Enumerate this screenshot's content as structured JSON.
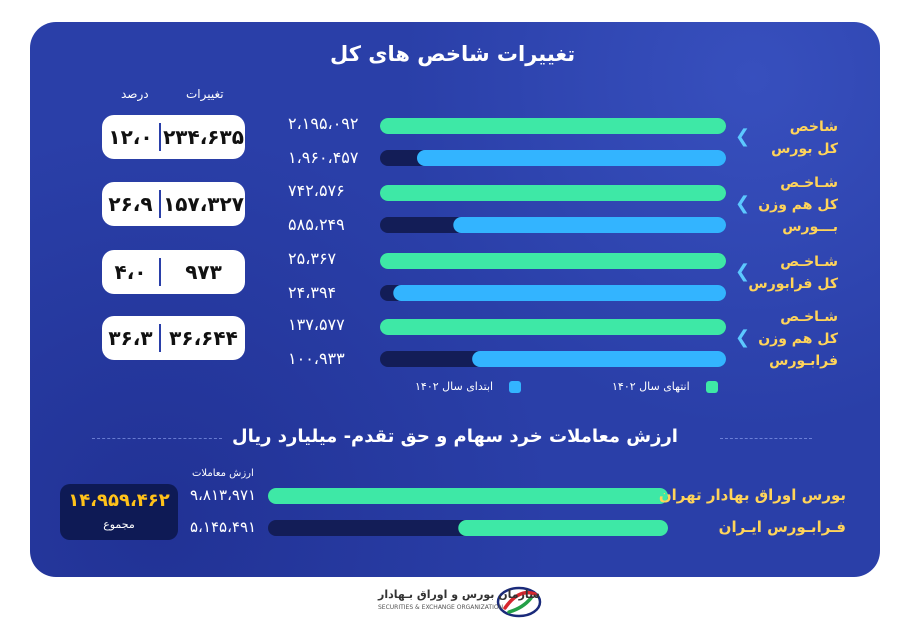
{
  "title_indices": "تغییرات شاخص های کل",
  "headers": {
    "change": "تغییرات",
    "percent": "درصد"
  },
  "indices": [
    {
      "name_lines": [
        "شاخص",
        "کل بورس"
      ],
      "change": "۲۳۴،۶۳۵",
      "percent": "۱۲،۰",
      "end_label": "۲،۱۹۵،۰۹۲",
      "start_label": "۱،۹۶۰،۴۵۷"
    },
    {
      "name_lines": [
        "شـاخـص",
        "کل هم وزن",
        "بـــورس"
      ],
      "change": "۱۵۷،۳۲۷",
      "percent": "۲۶،۹",
      "end_label": "۷۴۲،۵۷۶",
      "start_label": "۵۸۵،۲۴۹"
    },
    {
      "name_lines": [
        "شـاخـص",
        "کل فرابورس"
      ],
      "change": "۹۷۳",
      "percent": "۴،۰",
      "end_label": "۲۵،۳۶۷",
      "start_label": "۲۴،۳۹۴"
    },
    {
      "name_lines": [
        "شـاخـص",
        "کل هم وزن",
        "فرابـورس"
      ],
      "change": "۳۶،۶۴۴",
      "percent": "۳۶،۳",
      "end_label": "۱۳۷،۵۷۷",
      "start_label": "۱۰۰،۹۳۳"
    }
  ],
  "legend": {
    "end": "انتهای سال ۱۴۰۲",
    "start": "ابتدای سال ۱۴۰۲"
  },
  "title_trades": "ارزش معاملات خرد سهام و حق تقدم- میلیارد ریال",
  "trade_value_header": "ارزش معاملات",
  "trades": [
    {
      "name": "بورس اوراق بهادار تهران",
      "value_label": "۹،۸۱۳،۹۷۱"
    },
    {
      "name": "فـرابـورس ایـران",
      "value_label": "۵،۱۴۵،۴۹۱"
    }
  ],
  "total": {
    "value": "۱۴،۹۵۹،۴۶۲",
    "label": "مجموع"
  },
  "footer": {
    "org_fa": "سازمان بورس و اوراق بـهادار",
    "org_en": "SECURITIES & EXCHANGE ORGANIZATION"
  },
  "colors": {
    "background": "#2a3fa8",
    "end_bar": "#3ee8a6",
    "start_bar": "#33b4ff",
    "bar_track": "#131d57",
    "accent_text": "#ffd45a",
    "total_text": "#ffc21a"
  },
  "chart_data": [
    {
      "type": "bar",
      "categories": [
        "شاخص کل بورس",
        "شاخص کل هم وزن بورس",
        "شاخص کل فرابورس",
        "شاخص کل هم وزن فرابورس"
      ],
      "series": [
        {
          "name": "انتهای سال ۱۴۰۲",
          "values": [
            2195092,
            742576,
            25367,
            137577
          ]
        },
        {
          "name": "ابتدای سال ۱۴۰۲",
          "values": [
            1960457,
            585249,
            24394,
            100933
          ]
        }
      ],
      "change": [
        234635,
        157327,
        973,
        36644
      ],
      "percent": [
        12.0,
        26.9,
        4.0,
        36.3
      ],
      "title": "تغییرات شاخص های کل"
    },
    {
      "type": "bar",
      "categories": [
        "بورس اوراق بهادار تهران",
        "فرابورس ایران"
      ],
      "values": [
        9813971,
        5145491
      ],
      "total": 14959462,
      "title": "ارزش معاملات خرد سهام و حق تقدم- میلیارد ریال"
    }
  ]
}
